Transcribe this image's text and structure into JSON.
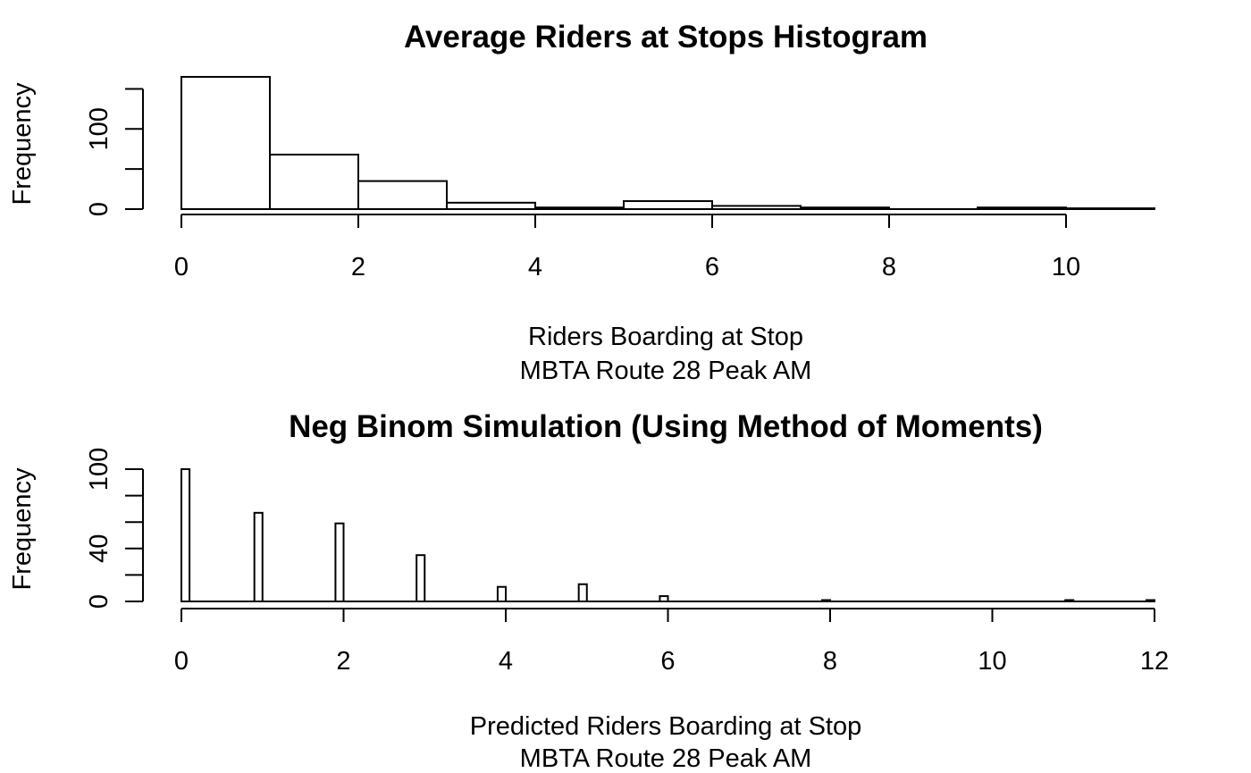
{
  "chart_data": [
    {
      "type": "bar",
      "title": "Average Riders at Stops Histogram",
      "xlabel": [
        "Riders Boarding at Stop",
        "MBTA Route 28 Peak AM"
      ],
      "ylabel": "Frequency",
      "x_ticks": [
        "0",
        "2",
        "4",
        "6",
        "8",
        "10"
      ],
      "y_ticks": [
        "0",
        "100"
      ],
      "y_tick_values": [
        0,
        50,
        100,
        150
      ],
      "xlim": [
        0,
        11
      ],
      "ylim": [
        0,
        165
      ],
      "bins": [
        {
          "start": 0,
          "end": 1,
          "value": 165
        },
        {
          "start": 1,
          "end": 2,
          "value": 68
        },
        {
          "start": 2,
          "end": 3,
          "value": 35
        },
        {
          "start": 3,
          "end": 4,
          "value": 8
        },
        {
          "start": 4,
          "end": 5,
          "value": 2
        },
        {
          "start": 5,
          "end": 6,
          "value": 10
        },
        {
          "start": 6,
          "end": 7,
          "value": 4
        },
        {
          "start": 7,
          "end": 8,
          "value": 2
        },
        {
          "start": 8,
          "end": 9,
          "value": 0
        },
        {
          "start": 9,
          "end": 10,
          "value": 2
        },
        {
          "start": 10,
          "end": 11,
          "value": 1
        }
      ]
    },
    {
      "type": "bar",
      "title": "Neg Binom Simulation (Using Method of Moments)",
      "xlabel": [
        "Predicted Riders Boarding at Stop",
        "MBTA Route 28 Peak AM"
      ],
      "ylabel": "Frequency",
      "x_ticks": [
        "0",
        "2",
        "4",
        "6",
        "8",
        "10",
        "12"
      ],
      "y_ticks": [
        "0",
        "40",
        "100"
      ],
      "y_tick_values": [
        0,
        20,
        40,
        60,
        80,
        100
      ],
      "xlim": [
        0,
        12
      ],
      "ylim": [
        0,
        100
      ],
      "bins": [
        {
          "start": 0,
          "end": 0.1,
          "value": 100
        },
        {
          "start": 0.9,
          "end": 1.0,
          "value": 67
        },
        {
          "start": 1.9,
          "end": 2.0,
          "value": 59
        },
        {
          "start": 2.9,
          "end": 3.0,
          "value": 35
        },
        {
          "start": 3.9,
          "end": 4.0,
          "value": 11
        },
        {
          "start": 4.9,
          "end": 5.0,
          "value": 13
        },
        {
          "start": 5.9,
          "end": 6.0,
          "value": 4
        },
        {
          "start": 7.9,
          "end": 8.0,
          "value": 1
        },
        {
          "start": 10.9,
          "end": 11.0,
          "value": 1
        },
        {
          "start": 11.9,
          "end": 12.0,
          "value": 1
        }
      ]
    }
  ]
}
